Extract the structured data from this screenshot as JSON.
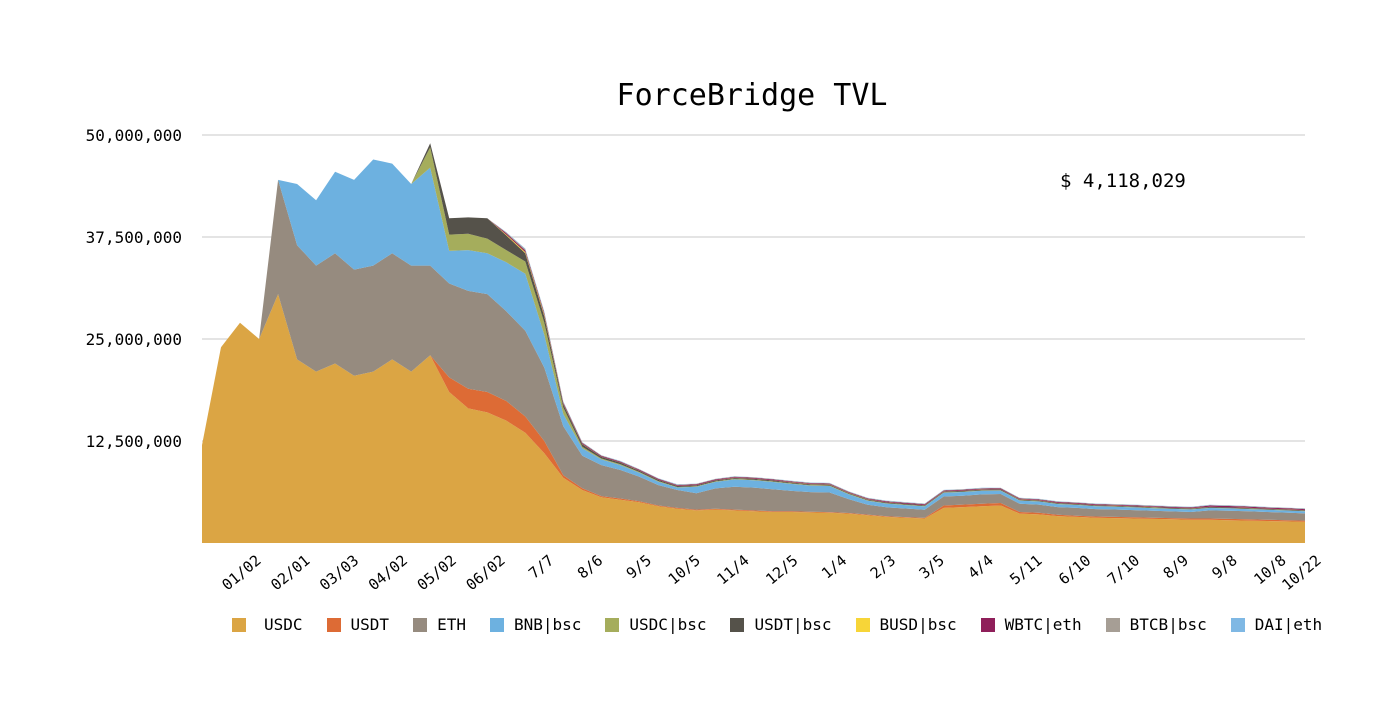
{
  "chart_data": {
    "type": "area",
    "title": "ForceBridge TVL",
    "annotation": "$ 4,118,029",
    "stacked": true,
    "grid": true,
    "legend_position": "bottom",
    "ylim": [
      0,
      50000000
    ],
    "y_ticks": [
      "12,500,000",
      "25,000,000",
      "37,500,000",
      "50,000,000"
    ],
    "y_tick_values": [
      12500000,
      25000000,
      37500000,
      50000000
    ],
    "x_ticks": [
      "01/02",
      "02/01",
      "03/03",
      "04/02",
      "05/02",
      "06/02",
      "7/7",
      "8/6",
      "9/5",
      "10/5",
      "11/4",
      "12/5",
      "1/4",
      "2/3",
      "3/5",
      "4/4",
      "5/11",
      "6/10",
      "7/10",
      "8/9",
      "9/8",
      "10/8",
      "10/22"
    ],
    "x": [
      "12/01",
      "12/08",
      "12/15",
      "12/22",
      "01/02",
      "01/10",
      "01/18",
      "01/25",
      "02/01",
      "02/08",
      "02/15",
      "02/22",
      "03/03",
      "03/10",
      "03/17",
      "03/25",
      "04/02",
      "04/10",
      "04/18",
      "04/25",
      "05/02",
      "05/09",
      "05/16",
      "05/24",
      "06/02",
      "06/15",
      "7/7",
      "7/20",
      "8/6",
      "8/20",
      "9/5",
      "9/20",
      "10/5",
      "10/20",
      "11/4",
      "11/20",
      "12/5",
      "12/20",
      "1/4",
      "1/5",
      "1/20",
      "2/3",
      "2/20",
      "3/5",
      "3/20",
      "4/4",
      "4/20",
      "5/11",
      "5/25",
      "6/10",
      "6/25",
      "7/10",
      "7/25",
      "8/9",
      "8/25",
      "9/8",
      "9/25",
      "10/8",
      "10/22"
    ],
    "series": [
      {
        "name": "USDC",
        "color": "#dba544",
        "values": [
          12000000,
          24000000,
          27000000,
          25000000,
          30500000,
          22500000,
          21000000,
          22000000,
          20500000,
          21000000,
          22500000,
          21000000,
          23000000,
          18500000,
          16500000,
          16000000,
          15000000,
          13500000,
          11000000,
          8000000,
          6500000,
          5600000,
          5300000,
          5000000,
          4500000,
          4200000,
          4000000,
          4100000,
          4000000,
          3900000,
          3800000,
          3800000,
          3750000,
          3700000,
          3600000,
          3400000,
          3200000,
          3100000,
          3000000,
          4300000,
          4400000,
          4500000,
          4600000,
          3600000,
          3500000,
          3300000,
          3200000,
          3100000,
          3050000,
          3000000,
          2950000,
          2900000,
          2850000,
          2850000,
          2800000,
          2750000,
          2700000,
          2650000,
          2600000
        ]
      },
      {
        "name": "USDT",
        "color": "#dd6b35",
        "values": [
          0,
          0,
          0,
          0,
          0,
          0,
          0,
          0,
          0,
          0,
          0,
          0,
          0,
          1800000,
          2400000,
          2500000,
          2400000,
          2000000,
          1500000,
          300000,
          200000,
          150000,
          150000,
          120000,
          100000,
          100000,
          90000,
          90000,
          90000,
          90000,
          90000,
          90000,
          90000,
          90000,
          80000,
          80000,
          80000,
          80000,
          80000,
          300000,
          300000,
          300000,
          300000,
          200000,
          200000,
          150000,
          150000,
          150000,
          150000,
          150000,
          150000,
          150000,
          150000,
          150000,
          150000,
          150000,
          150000,
          150000,
          150000
        ]
      },
      {
        "name": "ETH",
        "color": "#968b7f",
        "values": [
          0,
          0,
          0,
          0,
          14000000,
          14000000,
          13000000,
          13500000,
          13000000,
          13000000,
          13000000,
          13000000,
          11000000,
          11500000,
          12000000,
          12000000,
          11000000,
          10500000,
          9000000,
          6000000,
          4000000,
          3800000,
          3500000,
          3000000,
          2500000,
          2200000,
          2000000,
          2500000,
          2800000,
          2800000,
          2700000,
          2500000,
          2400000,
          2400000,
          1700000,
          1200000,
          1100000,
          1050000,
          1000000,
          1100000,
          1100000,
          1150000,
          1100000,
          1000000,
          1000000,
          950000,
          950000,
          900000,
          900000,
          880000,
          850000,
          820000,
          800000,
          1000000,
          1000000,
          980000,
          950000,
          920000,
          880000
        ]
      },
      {
        "name": "BNB|bsc",
        "color": "#6db1e0",
        "values": [
          0,
          0,
          0,
          0,
          0,
          7500000,
          8000000,
          10000000,
          11000000,
          13000000,
          11000000,
          10000000,
          12000000,
          4000000,
          5000000,
          5000000,
          6000000,
          7000000,
          4000000,
          1500000,
          900000,
          700000,
          600000,
          500000,
          400000,
          300000,
          800000,
          800000,
          900000,
          900000,
          900000,
          850000,
          800000,
          800000,
          600000,
          500000,
          450000,
          420000,
          400000,
          450000,
          450000,
          450000,
          420000,
          400000,
          380000,
          370000,
          360000,
          350000,
          340000,
          330000,
          320000,
          310000,
          300000,
          290000,
          290000,
          280000,
          270000,
          260000,
          250000
        ]
      },
      {
        "name": "USDC|bsc",
        "color": "#a5ad5c",
        "values": [
          0,
          0,
          0,
          0,
          0,
          0,
          0,
          0,
          0,
          0,
          0,
          0,
          2500000,
          2000000,
          2000000,
          1800000,
          1500000,
          1500000,
          1500000,
          800000,
          200000,
          100000,
          100000,
          80000,
          80000,
          60000,
          60000,
          60000,
          60000,
          60000,
          60000,
          60000,
          60000,
          60000,
          50000,
          50000,
          50000,
          50000,
          50000,
          50000,
          50000,
          50000,
          50000,
          40000,
          40000,
          40000,
          40000,
          40000,
          40000,
          40000,
          40000,
          40000,
          40000,
          40000,
          40000,
          40000,
          40000,
          40000,
          40000
        ]
      },
      {
        "name": "USDT|bsc",
        "color": "#55524a",
        "values": [
          0,
          0,
          0,
          0,
          0,
          0,
          0,
          0,
          0,
          0,
          0,
          0,
          500000,
          2000000,
          2000000,
          2500000,
          1800000,
          1000000,
          800000,
          400000,
          300000,
          200000,
          200000,
          150000,
          150000,
          120000,
          120000,
          120000,
          120000,
          120000,
          120000,
          120000,
          110000,
          110000,
          100000,
          100000,
          100000,
          100000,
          100000,
          100000,
          100000,
          100000,
          100000,
          90000,
          90000,
          90000,
          90000,
          90000,
          90000,
          90000,
          90000,
          90000,
          90000,
          90000,
          90000,
          90000,
          90000,
          90000,
          90000
        ]
      },
      {
        "name": "BUSD|bsc",
        "color": "#f7d538",
        "values": [
          0,
          0,
          0,
          0,
          0,
          0,
          0,
          0,
          0,
          0,
          0,
          0,
          0,
          0,
          0,
          0,
          100000,
          150000,
          150000,
          50000,
          30000,
          20000,
          20000,
          20000,
          20000,
          20000,
          20000,
          20000,
          20000,
          20000,
          20000,
          20000,
          20000,
          20000,
          20000,
          20000,
          20000,
          20000,
          20000,
          20000,
          20000,
          20000,
          20000,
          20000,
          20000,
          20000,
          20000,
          20000,
          20000,
          20000,
          20000,
          20000,
          20000,
          20000,
          20000,
          20000,
          20000,
          20000,
          20000
        ]
      },
      {
        "name": "WBTC|eth",
        "color": "#8f1f5a",
        "values": [
          0,
          0,
          0,
          0,
          0,
          0,
          0,
          0,
          0,
          0,
          0,
          0,
          0,
          0,
          0,
          0,
          150000,
          200000,
          200000,
          150000,
          120000,
          100000,
          100000,
          100000,
          100000,
          100000,
          100000,
          100000,
          100000,
          100000,
          100000,
          100000,
          100000,
          100000,
          100000,
          100000,
          100000,
          100000,
          100000,
          100000,
          100000,
          100000,
          100000,
          100000,
          100000,
          100000,
          100000,
          100000,
          100000,
          100000,
          100000,
          100000,
          100000,
          150000,
          150000,
          150000,
          120000,
          120000,
          120000
        ]
      },
      {
        "name": "BTCB|bsc",
        "color": "#a69e95",
        "values": [
          0,
          0,
          0,
          0,
          0,
          0,
          0,
          0,
          0,
          0,
          0,
          0,
          0,
          0,
          0,
          0,
          100000,
          150000,
          150000,
          100000,
          80000,
          60000,
          60000,
          60000,
          60000,
          60000,
          60000,
          60000,
          60000,
          60000,
          60000,
          60000,
          60000,
          60000,
          60000,
          60000,
          60000,
          60000,
          60000,
          60000,
          60000,
          60000,
          60000,
          60000,
          60000,
          60000,
          60000,
          60000,
          60000,
          60000,
          60000,
          60000,
          60000,
          60000,
          60000,
          60000,
          60000,
          60000,
          60000
        ]
      },
      {
        "name": "DAI|eth",
        "color": "#7fb8e4",
        "values": [
          0,
          0,
          0,
          0,
          0,
          0,
          0,
          0,
          0,
          0,
          0,
          0,
          0,
          0,
          0,
          0,
          50000,
          80000,
          80000,
          50000,
          40000,
          30000,
          30000,
          30000,
          30000,
          30000,
          30000,
          30000,
          30000,
          30000,
          30000,
          30000,
          30000,
          30000,
          30000,
          30000,
          30000,
          30000,
          30000,
          30000,
          30000,
          30000,
          30000,
          30000,
          30000,
          30000,
          30000,
          30000,
          30000,
          30000,
          30000,
          30000,
          30000,
          30000,
          30000,
          30000,
          30000,
          30000,
          30000
        ]
      }
    ]
  }
}
